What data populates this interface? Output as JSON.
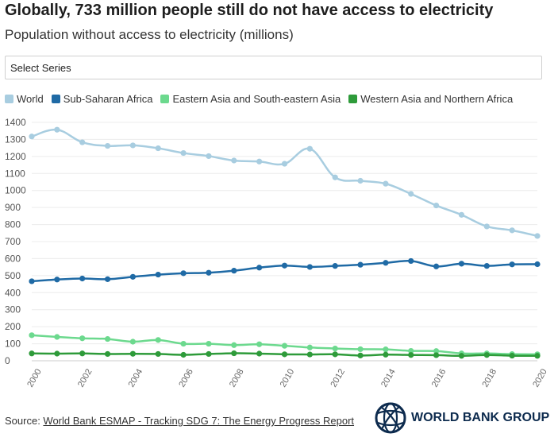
{
  "header": {
    "title": "Globally, 733 million people still do not have access to electricity",
    "subtitle": "Population without access to electricity (millions)"
  },
  "select": {
    "label": "Select Series"
  },
  "colors": {
    "world": "#a8cde0",
    "ssa": "#1f6aa5",
    "easia": "#6cd98e",
    "wasia": "#2e9b3a"
  },
  "chart_data": {
    "type": "line",
    "title": "Population without access to electricity (millions)",
    "xlabel": "",
    "ylabel": "",
    "ylim": [
      0,
      1400
    ],
    "yticks": [
      0,
      100,
      200,
      300,
      400,
      500,
      600,
      700,
      800,
      900,
      1000,
      1100,
      1200,
      1300,
      1400
    ],
    "x": [
      2000,
      2001,
      2002,
      2003,
      2004,
      2005,
      2006,
      2007,
      2008,
      2009,
      2010,
      2011,
      2012,
      2013,
      2014,
      2015,
      2016,
      2017,
      2018,
      2019,
      2020
    ],
    "xticks": [
      "2000",
      "2002",
      "2004",
      "2006",
      "2008",
      "2010",
      "2012",
      "2014",
      "2016",
      "2018",
      "2020"
    ],
    "legend_position": "top-left",
    "grid": true,
    "series": [
      {
        "name": "World",
        "color": "#a8cde0",
        "values": [
          1317,
          1357,
          1283,
          1262,
          1265,
          1248,
          1220,
          1202,
          1176,
          1170,
          1157,
          1245,
          1077,
          1057,
          1040,
          980,
          912,
          857,
          789,
          766,
          733
        ]
      },
      {
        "name": "Sub-Saharan Africa",
        "color": "#1f6aa5",
        "values": [
          467,
          477,
          483,
          479,
          493,
          506,
          514,
          517,
          529,
          547,
          559,
          551,
          557,
          564,
          575,
          586,
          554,
          570,
          557,
          566,
          567
        ]
      },
      {
        "name": "Eastern Asia and South-eastern Asia",
        "color": "#6cd98e",
        "values": [
          150,
          140,
          132,
          128,
          112,
          122,
          100,
          100,
          92,
          97,
          88,
          78,
          72,
          68,
          67,
          58,
          57,
          43,
          43,
          39,
          38
        ]
      },
      {
        "name": "Western Asia and Northern Africa",
        "color": "#2e9b3a",
        "values": [
          43,
          42,
          43,
          40,
          41,
          40,
          35,
          40,
          44,
          42,
          38,
          37,
          38,
          31,
          36,
          34,
          33,
          29,
          34,
          30,
          29
        ]
      }
    ]
  },
  "footer": {
    "source_prefix": "Source: ",
    "source_link": "World Bank ESMAP - Tracking SDG 7: The Energy Progress Report"
  },
  "logo": {
    "text": "WORLD BANK GROUP",
    "icon": "globe-icon"
  }
}
